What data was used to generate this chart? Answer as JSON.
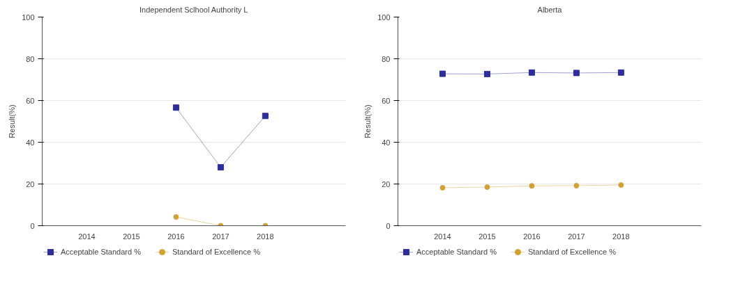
{
  "chart_data": [
    {
      "type": "line",
      "title": "Independent Sclhool Authority L",
      "ylabel": "Result(%)",
      "categories": [
        "2014",
        "2015",
        "2016",
        "2017",
        "2018"
      ],
      "ylim": [
        0,
        100
      ],
      "yticks": [
        0,
        20,
        40,
        60,
        80,
        100
      ],
      "grid": "y",
      "legend": "bottom",
      "series": [
        {
          "name": "Acceptable Standard %",
          "color": "#2e2e9a",
          "marker": "square",
          "values": [
            null,
            null,
            56.6,
            28.0,
            52.6
          ]
        },
        {
          "name": "Standard of Excellence %",
          "color": "#d4a030",
          "marker": "circle",
          "values": [
            null,
            null,
            4.2,
            0,
            0
          ]
        }
      ]
    },
    {
      "type": "line",
      "title": "Alberta",
      "ylabel": "Result(%)",
      "categories": [
        "2014",
        "2015",
        "2016",
        "2017",
        "2018"
      ],
      "ylim": [
        0,
        100
      ],
      "yticks": [
        0,
        20,
        40,
        60,
        80,
        100
      ],
      "grid": "y",
      "legend": "bottom",
      "series": [
        {
          "name": "Acceptable Standard %",
          "color": "#2e2e9a",
          "marker": "square",
          "values": [
            72.8,
            72.7,
            73.4,
            73.2,
            73.4
          ]
        },
        {
          "name": "Standard of Excellence %",
          "color": "#d4a030",
          "marker": "circle",
          "values": [
            18.2,
            18.5,
            19.1,
            19.2,
            19.5
          ]
        }
      ]
    }
  ]
}
